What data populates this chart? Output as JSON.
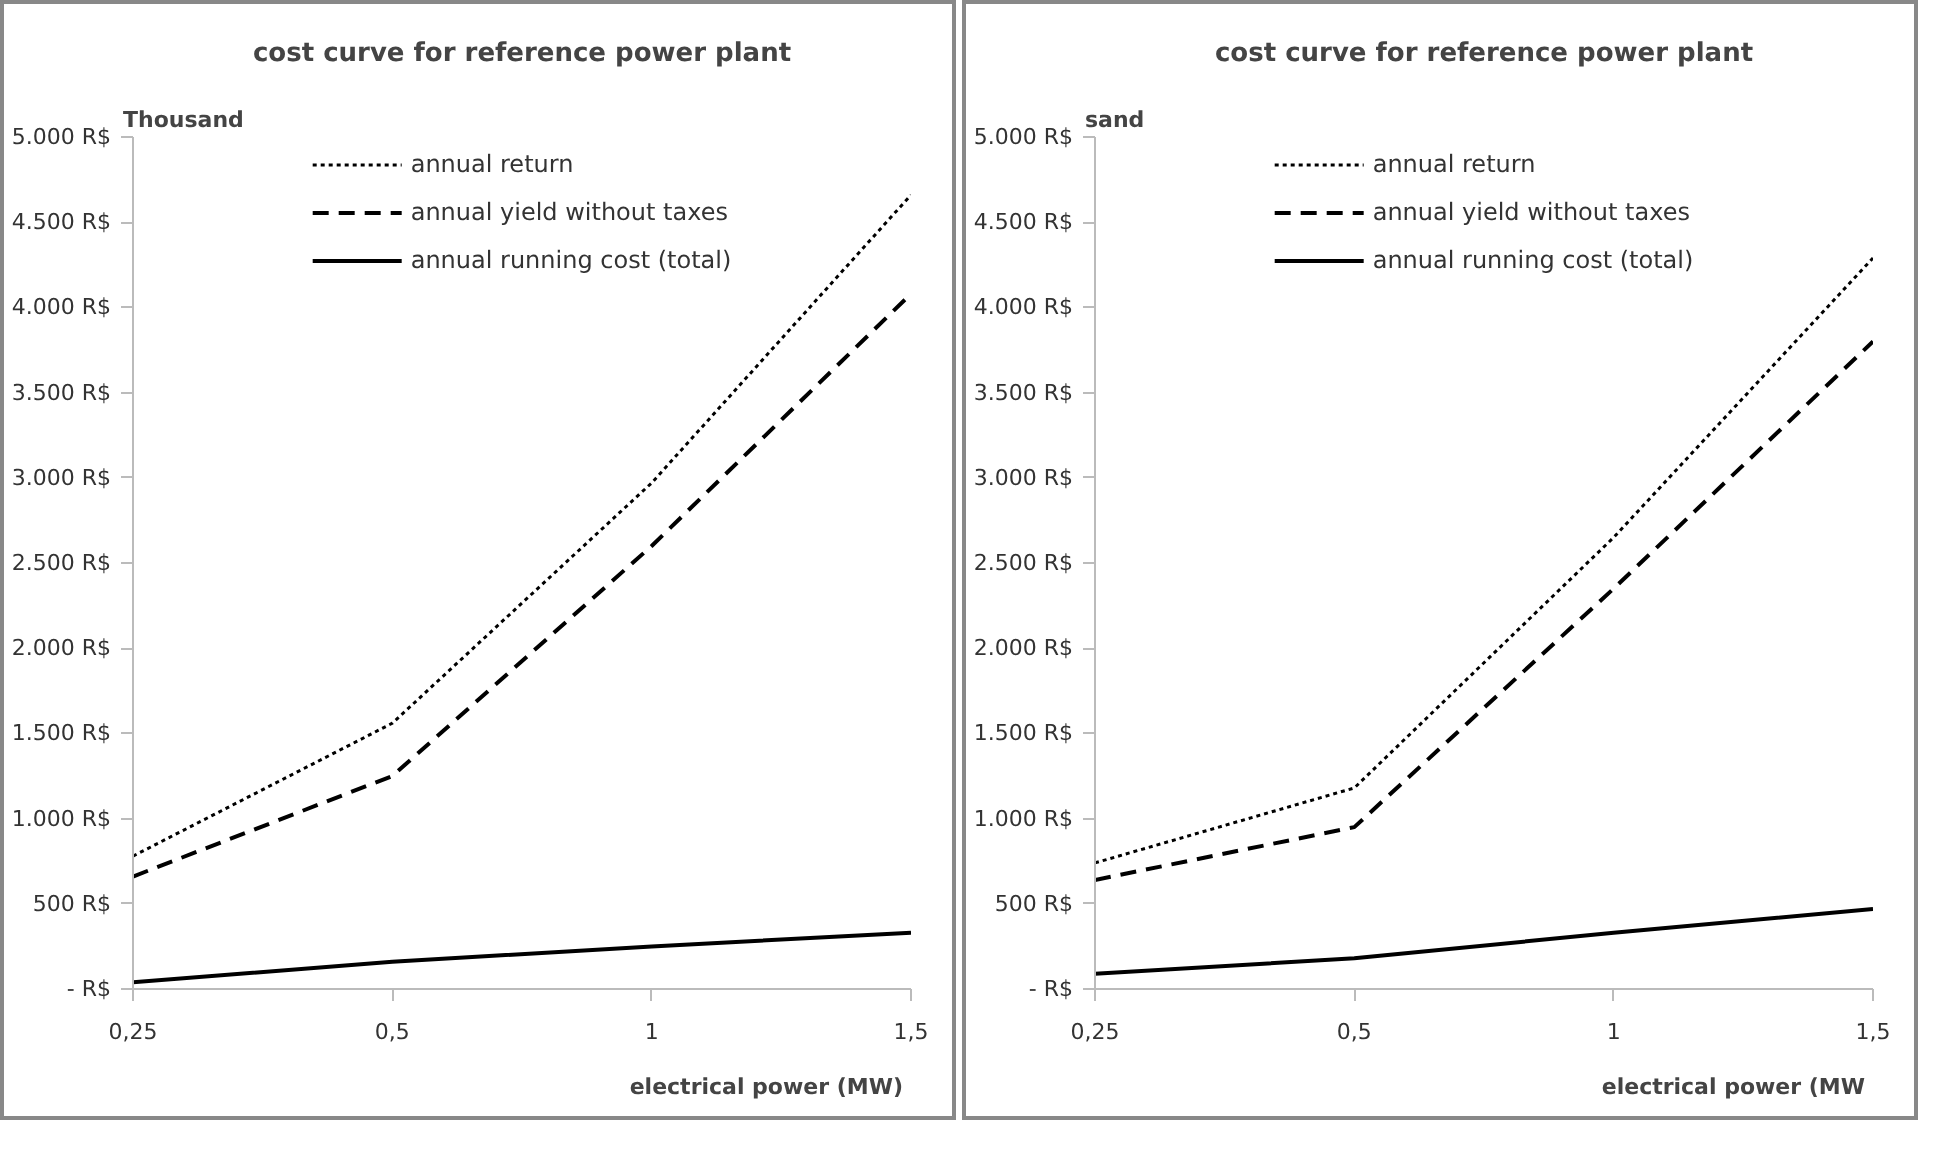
{
  "chart_data": [
    {
      "type": "line",
      "title": "cost curve for reference power plant",
      "ylabel": "Thousand",
      "xlabel": "electrical power (MW)",
      "categories": [
        "0,25",
        "0,5",
        "1",
        "1,5"
      ],
      "ylim": [
        0,
        5000
      ],
      "yticks": [
        {
          "value": 0,
          "label": "- R$"
        },
        {
          "value": 500,
          "label": "500 R$"
        },
        {
          "value": 1000,
          "label": "1.000 R$"
        },
        {
          "value": 1500,
          "label": "1.500 R$"
        },
        {
          "value": 2000,
          "label": "2.000 R$"
        },
        {
          "value": 2500,
          "label": "2.500 R$"
        },
        {
          "value": 3000,
          "label": "3.000 R$"
        },
        {
          "value": 3500,
          "label": "3.500 R$"
        },
        {
          "value": 4000,
          "label": "4.000 R$"
        },
        {
          "value": 4500,
          "label": "4.500 R$"
        },
        {
          "value": 5000,
          "label": "5.000 R$"
        }
      ],
      "legend": "top",
      "grid": false,
      "series": [
        {
          "name": "annual return",
          "color": "#000000",
          "line_style": "dotted",
          "values": [
            780,
            1560,
            2970,
            4660
          ]
        },
        {
          "name": "annual yield without taxes",
          "color": "#000000",
          "line_style": "dashed",
          "values": [
            660,
            1250,
            2600,
            4080
          ]
        },
        {
          "name": "annual running cost (total)",
          "color": "#000000",
          "line_style": "solid",
          "values": [
            40,
            160,
            250,
            330
          ]
        }
      ]
    },
    {
      "type": "line",
      "title": "cost curve for reference power plant",
      "ylabel": "sand",
      "xlabel": "electrical power (MW",
      "categories": [
        "0,25",
        "0,5",
        "1",
        "1,5"
      ],
      "ylim": [
        0,
        5000
      ],
      "yticks": [
        {
          "value": 0,
          "label": "- R$"
        },
        {
          "value": 500,
          "label": "500 R$"
        },
        {
          "value": 1000,
          "label": "1.000 R$"
        },
        {
          "value": 1500,
          "label": "1.500 R$"
        },
        {
          "value": 2000,
          "label": "2.000 R$"
        },
        {
          "value": 2500,
          "label": "2.500 R$"
        },
        {
          "value": 3000,
          "label": "3.000 R$"
        },
        {
          "value": 3500,
          "label": "3.500 R$"
        },
        {
          "value": 4000,
          "label": "4.000 R$"
        },
        {
          "value": 4500,
          "label": "4.500 R$"
        },
        {
          "value": 5000,
          "label": "5.000 R$"
        }
      ],
      "legend": "top",
      "grid": false,
      "series": [
        {
          "name": "annual return",
          "color": "#000000",
          "line_style": "dotted",
          "values": [
            740,
            1180,
            2650,
            4290
          ]
        },
        {
          "name": "annual yield without taxes",
          "color": "#000000",
          "line_style": "dashed",
          "values": [
            640,
            950,
            2350,
            3800
          ]
        },
        {
          "name": "annual running cost (total)",
          "color": "#000000",
          "line_style": "solid",
          "values": [
            90,
            180,
            330,
            470
          ]
        }
      ]
    }
  ]
}
